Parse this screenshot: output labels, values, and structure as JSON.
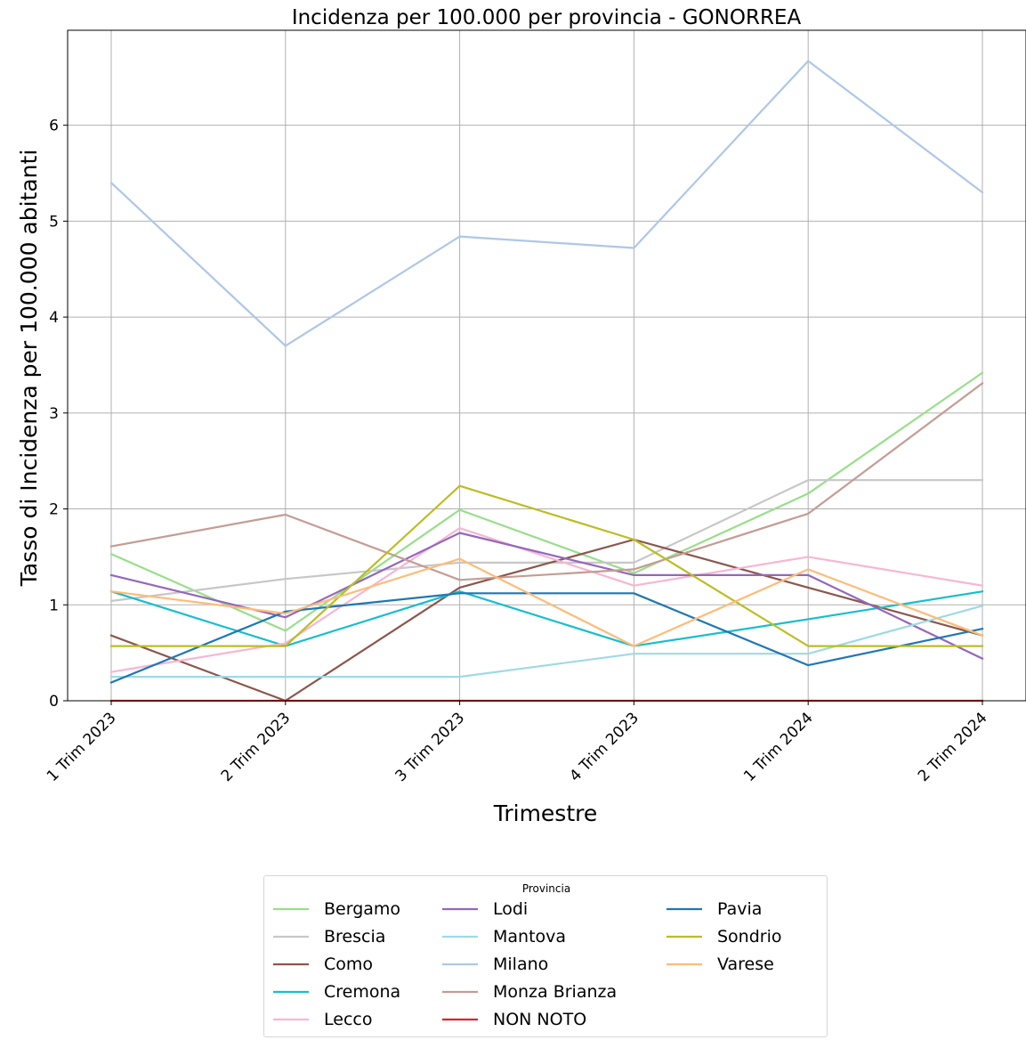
{
  "chart_data": {
    "type": "line",
    "title": "Incidenza per 100.000 per provincia - GONORREA",
    "xlabel": "Trimestre",
    "ylabel": "Tasso di Incidenza per 100.000 abitanti",
    "categories": [
      "1 Trim 2023",
      "2 Trim 2023",
      "3 Trim 2023",
      "4 Trim 2023",
      "1 Trim 2024",
      "2 Trim 2024"
    ],
    "ylim": [
      0,
      6.99
    ],
    "yticks": [
      "0",
      "1",
      "2",
      "3",
      "4",
      "5",
      "6"
    ],
    "grid": true,
    "legend": {
      "title": "Provincia",
      "placement": "bottom-center",
      "columns": 3
    },
    "series": [
      {
        "name": "Bergamo",
        "color": "#98df8a",
        "values": [
          1.53,
          0.73,
          1.99,
          1.33,
          2.16,
          3.42
        ]
      },
      {
        "name": "Brescia",
        "color": "#c7c7c7",
        "values": [
          1.04,
          1.27,
          1.44,
          1.44,
          2.3,
          2.3
        ]
      },
      {
        "name": "Como",
        "color": "#8c564b",
        "values": [
          0.68,
          0.0,
          1.18,
          1.68,
          1.18,
          0.68
        ]
      },
      {
        "name": "Cremona",
        "color": "#17becf",
        "values": [
          1.14,
          0.57,
          1.14,
          0.57,
          0.85,
          1.14
        ]
      },
      {
        "name": "Lecco",
        "color": "#f7b6d2",
        "values": [
          0.3,
          0.6,
          1.8,
          1.2,
          1.5,
          1.2
        ]
      },
      {
        "name": "Lodi",
        "color": "#9467bd",
        "values": [
          1.31,
          0.87,
          1.75,
          1.31,
          1.31,
          0.44
        ]
      },
      {
        "name": "Mantova",
        "color": "#9edae5",
        "values": [
          0.25,
          0.25,
          0.25,
          0.49,
          0.49,
          0.99
        ]
      },
      {
        "name": "Milano",
        "color": "#aec7e8",
        "values": [
          5.4,
          3.7,
          4.84,
          4.72,
          6.67,
          5.3
        ]
      },
      {
        "name": "Monza Brianza",
        "color": "#c49c94",
        "values": [
          1.61,
          1.94,
          1.26,
          1.37,
          1.95,
          3.31
        ]
      },
      {
        "name": "NON NOTO",
        "color": "#d62728",
        "values": [
          0,
          0,
          0,
          0,
          0,
          0
        ]
      },
      {
        "name": "Pavia",
        "color": "#1f77b4",
        "values": [
          0.19,
          0.93,
          1.12,
          1.12,
          0.37,
          0.75
        ]
      },
      {
        "name": "Sondrio",
        "color": "#bcbd22",
        "values": [
          0.57,
          0.57,
          2.24,
          1.68,
          0.57,
          0.57
        ]
      },
      {
        "name": "Varese",
        "color": "#ffbb78",
        "values": [
          1.14,
          0.91,
          1.48,
          0.57,
          1.37,
          0.68
        ]
      }
    ]
  }
}
